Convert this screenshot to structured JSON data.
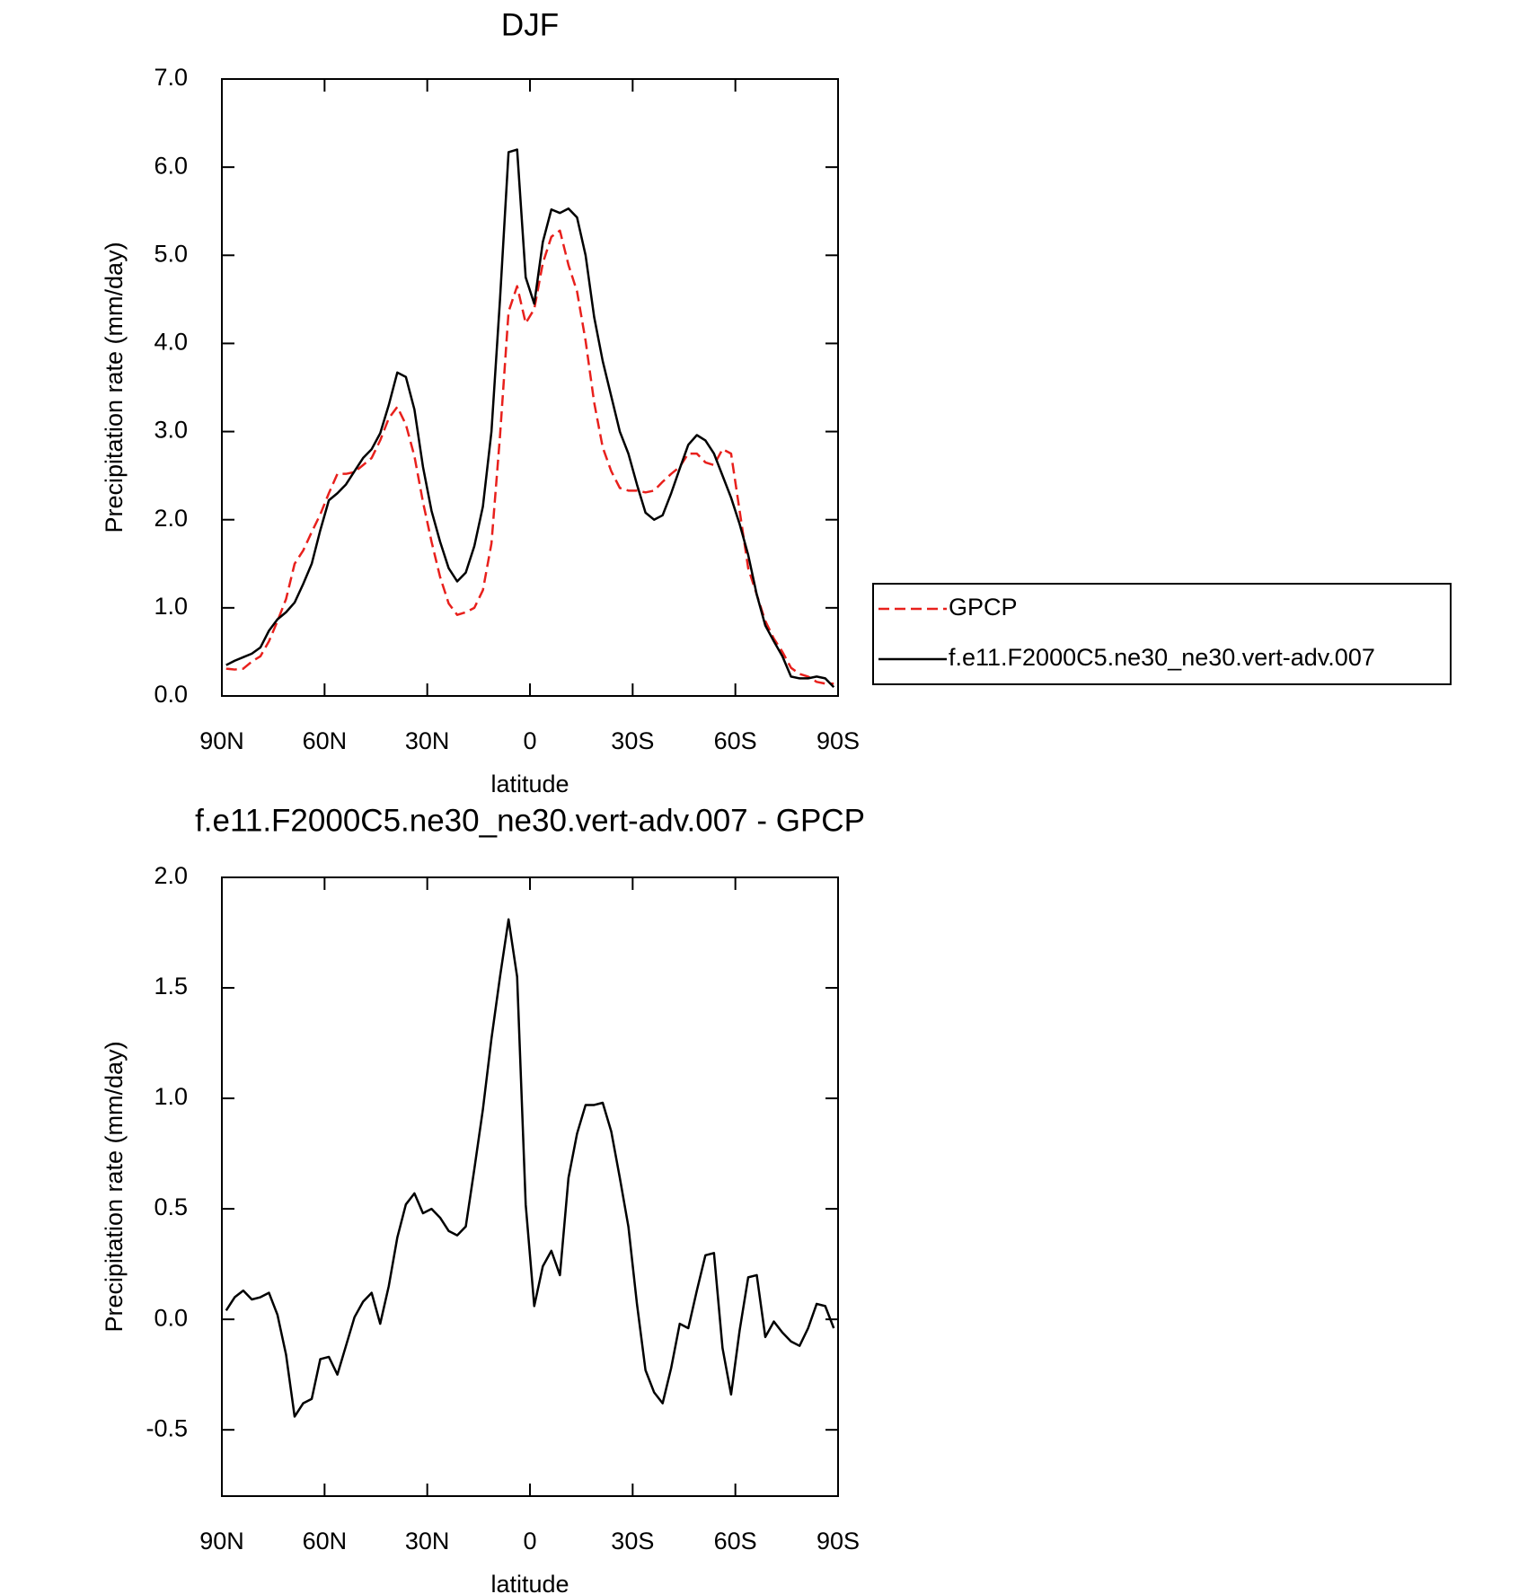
{
  "chart_data": [
    {
      "type": "line",
      "title": "DJF",
      "xlabel": "latitude",
      "ylabel": "Precipitation rate (mm/day)",
      "x": [
        88.75,
        86.25,
        83.75,
        81.25,
        78.75,
        76.25,
        73.75,
        71.25,
        68.75,
        66.25,
        63.75,
        61.25,
        58.75,
        56.25,
        53.75,
        51.25,
        48.75,
        46.25,
        43.75,
        41.25,
        38.75,
        36.25,
        33.75,
        31.25,
        28.75,
        26.25,
        23.75,
        21.25,
        18.75,
        16.25,
        13.75,
        11.25,
        8.75,
        6.25,
        3.75,
        1.25,
        -1.25,
        -3.75,
        -6.25,
        -8.75,
        -11.25,
        -13.75,
        -16.25,
        -18.75,
        -21.25,
        -23.75,
        -26.25,
        -28.75,
        -31.25,
        -33.75,
        -36.25,
        -38.75,
        -41.25,
        -43.75,
        -46.25,
        -48.75,
        -51.25,
        -53.75,
        -56.25,
        -58.75,
        -61.25,
        -63.75,
        -66.25,
        -68.75,
        -71.25,
        -73.75,
        -76.25,
        -78.75,
        -81.25,
        -83.75,
        -86.25,
        -88.75
      ],
      "series": [
        {
          "name": "GPCP",
          "color": "#e8201c",
          "line_style": "dashed",
          "values": [
            0.31,
            0.3,
            0.31,
            0.39,
            0.45,
            0.62,
            0.85,
            1.1,
            1.5,
            1.65,
            1.86,
            2.06,
            2.3,
            2.52,
            2.52,
            2.54,
            2.62,
            2.7,
            2.9,
            3.15,
            3.28,
            3.08,
            2.72,
            2.2,
            1.75,
            1.35,
            1.05,
            0.92,
            0.95,
            1.0,
            1.2,
            1.73,
            2.95,
            4.36,
            4.65,
            4.23,
            4.39,
            4.91,
            5.21,
            5.28,
            4.89,
            4.59,
            4.03,
            3.33,
            2.82,
            2.55,
            2.36,
            2.33,
            2.33,
            2.31,
            2.33,
            2.43,
            2.52,
            2.6,
            2.75,
            2.75,
            2.65,
            2.62,
            2.8,
            2.75,
            2.1,
            1.45,
            1.15,
            0.85,
            0.65,
            0.5,
            0.32,
            0.25,
            0.22,
            0.16,
            0.14,
            0.14
          ]
        },
        {
          "name": "f.e11.F2000C5.ne30_ne30.vert-adv.007",
          "color": "#000000",
          "line_style": "solid",
          "values": [
            0.35,
            0.4,
            0.44,
            0.48,
            0.55,
            0.74,
            0.87,
            0.95,
            1.06,
            1.27,
            1.5,
            1.88,
            2.22,
            2.3,
            2.4,
            2.55,
            2.7,
            2.8,
            2.98,
            3.3,
            3.67,
            3.62,
            3.25,
            2.6,
            2.1,
            1.75,
            1.45,
            1.3,
            1.4,
            1.7,
            2.15,
            3.0,
            4.5,
            6.17,
            6.2,
            4.75,
            4.45,
            5.15,
            5.52,
            5.48,
            5.53,
            5.43,
            5.0,
            4.3,
            3.8,
            3.4,
            3.0,
            2.75,
            2.4,
            2.08,
            2.0,
            2.05,
            2.3,
            2.58,
            2.85,
            2.96,
            2.9,
            2.75,
            2.5,
            2.25,
            1.95,
            1.6,
            1.15,
            0.8,
            0.62,
            0.45,
            0.22,
            0.2,
            0.2,
            0.22,
            0.2,
            0.1
          ]
        }
      ],
      "xlim": [
        90,
        -90
      ],
      "xticks": [
        {
          "value": 90,
          "label": "90N"
        },
        {
          "value": 60,
          "label": "60N"
        },
        {
          "value": 30,
          "label": "30N"
        },
        0,
        {
          "value": -30,
          "label": "30S"
        },
        {
          "value": -60,
          "label": "60S"
        },
        {
          "value": -90,
          "label": "90S"
        }
      ],
      "ylim": [
        0,
        7
      ],
      "yticks": [
        {
          "value": 0,
          "label": "0.0"
        },
        {
          "value": 1,
          "label": "1.0"
        },
        {
          "value": 2,
          "label": "2.0"
        },
        {
          "value": 3,
          "label": "3.0"
        },
        {
          "value": 4,
          "label": "4.0"
        },
        {
          "value": 5,
          "label": "5.0"
        },
        {
          "value": 6,
          "label": "6.0"
        },
        {
          "value": 7,
          "label": "7.0"
        }
      ],
      "legend": "right"
    },
    {
      "type": "line",
      "title": "f.e11.F2000C5.ne30_ne30.vert-adv.007 - GPCP",
      "xlabel": "latitude",
      "ylabel": "Precipitation rate (mm/day)",
      "x": [
        88.75,
        86.25,
        83.75,
        81.25,
        78.75,
        76.25,
        73.75,
        71.25,
        68.75,
        66.25,
        63.75,
        61.25,
        58.75,
        56.25,
        53.75,
        51.25,
        48.75,
        46.25,
        43.75,
        41.25,
        38.75,
        36.25,
        33.75,
        31.25,
        28.75,
        26.25,
        23.75,
        21.25,
        18.75,
        16.25,
        13.75,
        11.25,
        8.75,
        6.25,
        3.75,
        1.25,
        -1.25,
        -3.75,
        -6.25,
        -8.75,
        -11.25,
        -13.75,
        -16.25,
        -18.75,
        -21.25,
        -23.75,
        -26.25,
        -28.75,
        -31.25,
        -33.75,
        -36.25,
        -38.75,
        -41.25,
        -43.75,
        -46.25,
        -48.75,
        -51.25,
        -53.75,
        -56.25,
        -58.75,
        -61.25,
        -63.75,
        -66.25,
        -68.75,
        -71.25,
        -73.75,
        -76.25,
        -78.75,
        -81.25,
        -83.75,
        -86.25,
        -88.75
      ],
      "series": [
        {
          "color": "#000000",
          "line_style": "solid",
          "values": [
            0.04,
            0.1,
            0.13,
            0.09,
            0.1,
            0.12,
            0.02,
            -0.16,
            -0.44,
            -0.38,
            -0.36,
            -0.18,
            -0.17,
            -0.25,
            -0.12,
            0.01,
            0.08,
            0.12,
            -0.02,
            0.15,
            0.37,
            0.52,
            0.57,
            0.48,
            0.5,
            0.46,
            0.4,
            0.38,
            0.42,
            0.68,
            0.95,
            1.27,
            1.55,
            1.81,
            1.55,
            0.52,
            0.06,
            0.24,
            0.31,
            0.2,
            0.64,
            0.84,
            0.97,
            0.97,
            0.98,
            0.85,
            0.64,
            0.42,
            0.07,
            -0.23,
            -0.33,
            -0.38,
            -0.22,
            -0.02,
            -0.04,
            0.13,
            0.29,
            0.3,
            -0.13,
            -0.34,
            -0.05,
            0.19,
            0.2,
            -0.08,
            -0.01,
            -0.06,
            -0.1,
            -0.12,
            -0.04,
            0.07,
            0.06,
            -0.04
          ]
        }
      ],
      "xlim": [
        90,
        -90
      ],
      "xticks": [
        {
          "value": 90,
          "label": "90N"
        },
        {
          "value": 60,
          "label": "60N"
        },
        {
          "value": 30,
          "label": "30N"
        },
        0,
        {
          "value": -30,
          "label": "30S"
        },
        {
          "value": -60,
          "label": "60S"
        },
        {
          "value": -90,
          "label": "90S"
        }
      ],
      "ylim": [
        -0.8,
        2.0
      ],
      "yticks": [
        -0.5,
        {
          "value": 0,
          "label": "0.0"
        },
        0.5,
        {
          "value": 1,
          "label": "1.0"
        },
        1.5,
        {
          "value": 2,
          "label": "2.0"
        }
      ]
    }
  ]
}
